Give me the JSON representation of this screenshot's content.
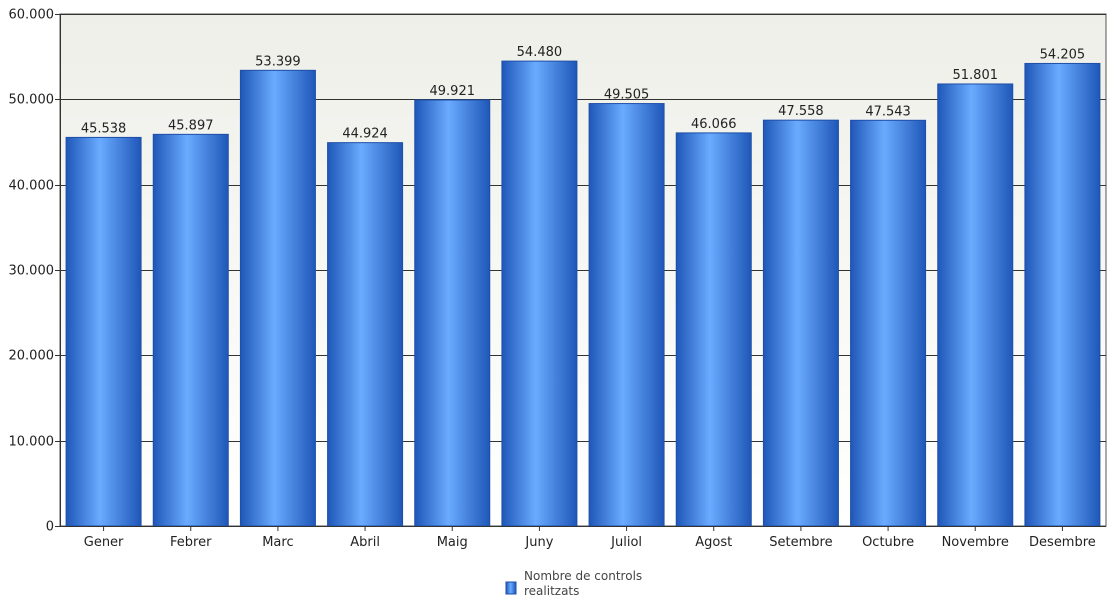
{
  "chart_data": {
    "type": "bar",
    "title": "",
    "xlabel": "",
    "ylabel": "",
    "categories": [
      "Gener",
      "Febrer",
      "Marc",
      "Abril",
      "Maig",
      "Juny",
      "Juliol",
      "Agost",
      "Setembre",
      "Octubre",
      "Novembre",
      "Desembre"
    ],
    "series": [
      {
        "name": "Nombre de controls realitzats",
        "values": [
          45538,
          45897,
          53399,
          44924,
          49921,
          54480,
          49505,
          46066,
          47558,
          47543,
          51801,
          54205
        ],
        "labels": [
          "45.538",
          "45.897",
          "53.399",
          "44.924",
          "49.921",
          "54.480",
          "49.505",
          "46.066",
          "47.558",
          "47.543",
          "51.801",
          "54.205"
        ]
      }
    ],
    "ylim": [
      0,
      60000
    ],
    "yticks": [
      0,
      10000,
      20000,
      30000,
      40000,
      50000,
      60000
    ],
    "ytick_labels": [
      "0",
      "10.000",
      "20.000",
      "30.000",
      "40.000",
      "50.000",
      "60.000"
    ],
    "grid": true,
    "legend": {
      "position": "bottom-center",
      "lines": [
        "Nombre de controls",
        "realitzats"
      ]
    },
    "colors": {
      "bar": "#3d7fe0",
      "bar_edge": "#1e4fa8",
      "bar_highlight": "#6aabff",
      "plot_bg": "#f0f0ea",
      "gridline": "#333333"
    }
  }
}
